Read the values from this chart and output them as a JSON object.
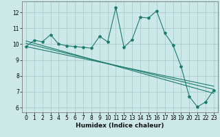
{
  "xlabel": "Humidex (Indice chaleur)",
  "background_color": "#cce8e8",
  "grid_color": "#aacccc",
  "line_color": "#1a7a6e",
  "xlim": [
    -0.5,
    23.5
  ],
  "ylim": [
    5.7,
    12.7
  ],
  "yticks": [
    6,
    7,
    8,
    9,
    10,
    11,
    12
  ],
  "xticks": [
    0,
    1,
    2,
    3,
    4,
    5,
    6,
    7,
    8,
    9,
    10,
    11,
    12,
    13,
    14,
    15,
    16,
    17,
    18,
    19,
    20,
    21,
    22,
    23
  ],
  "series1_x": [
    0,
    1,
    2,
    3,
    4,
    5,
    6,
    7,
    8,
    9,
    10,
    11,
    12,
    13,
    14,
    15,
    16,
    17,
    18,
    19,
    20,
    21,
    22,
    23
  ],
  "series1_y": [
    9.85,
    10.25,
    10.15,
    10.6,
    10.0,
    9.9,
    9.85,
    9.8,
    9.75,
    10.5,
    10.15,
    12.3,
    9.8,
    10.3,
    11.7,
    11.65,
    12.1,
    10.7,
    9.95,
    8.6,
    6.7,
    6.05,
    6.35,
    7.1
  ],
  "series2_x": [
    0,
    23
  ],
  "series2_y": [
    10.2,
    6.9
  ],
  "series3_x": [
    0,
    23
  ],
  "series3_y": [
    10.05,
    7.15
  ],
  "series4_x": [
    0,
    23
  ],
  "series4_y": [
    9.85,
    7.35
  ]
}
